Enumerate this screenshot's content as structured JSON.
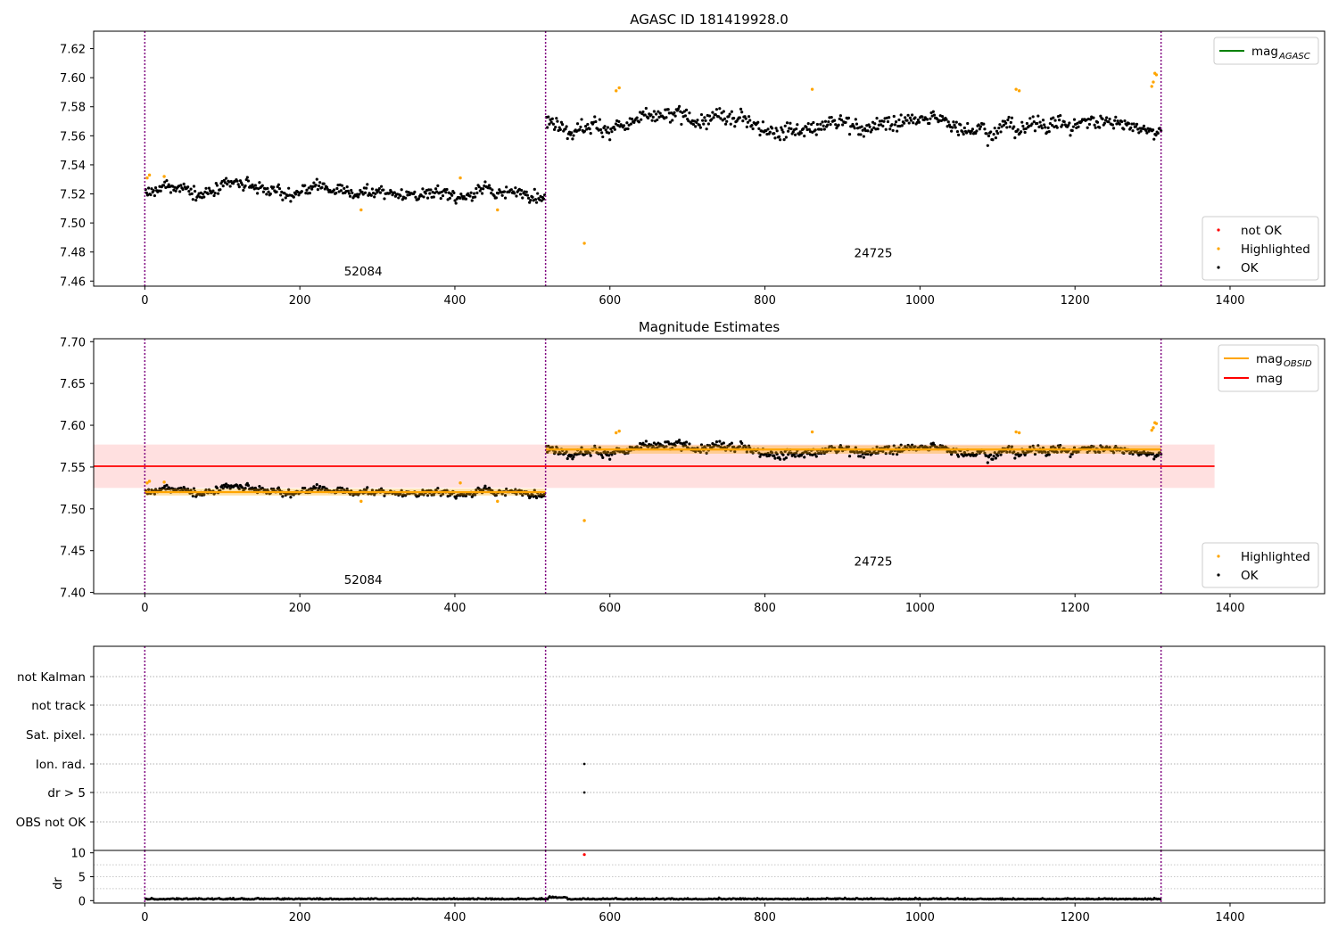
{
  "chart_data": [
    {
      "type": "scatter",
      "title": "AGASC ID 181419928.0",
      "xlabel": "",
      "ylabel": "",
      "xlim": [
        -66,
        1522
      ],
      "ylim": [
        7.4565,
        7.632
      ],
      "xticks": [
        0,
        200,
        400,
        600,
        800,
        1000,
        1200,
        1400
      ],
      "yticks": [
        7.46,
        7.48,
        7.5,
        7.52,
        7.54,
        7.56,
        7.58,
        7.6,
        7.62
      ],
      "grid": false,
      "obsid_boundaries": [
        0,
        517,
        1311
      ],
      "obsid_labels": [
        {
          "text": "52084",
          "x": 257,
          "y": 7.464
        },
        {
          "text": "24725",
          "x": 915,
          "y": 7.4765
        }
      ],
      "ok_segments": [
        {
          "x_start": 0,
          "x_end": 517,
          "mean": 7.521,
          "noise": 0.0035
        },
        {
          "x_start": 517,
          "x_end": 1311,
          "mean": 7.569,
          "noise": 0.0045
        }
      ],
      "highlighted_points": [
        {
          "x": 3,
          "y": 7.531
        },
        {
          "x": 6,
          "y": 7.533
        },
        {
          "x": 25,
          "y": 7.532
        },
        {
          "x": 279,
          "y": 7.509
        },
        {
          "x": 407,
          "y": 7.531
        },
        {
          "x": 455,
          "y": 7.509
        },
        {
          "x": 567,
          "y": 7.486
        },
        {
          "x": 608,
          "y": 7.591
        },
        {
          "x": 612,
          "y": 7.593
        },
        {
          "x": 861,
          "y": 7.592
        },
        {
          "x": 1124,
          "y": 7.592
        },
        {
          "x": 1128,
          "y": 7.591
        },
        {
          "x": 1299,
          "y": 7.594
        },
        {
          "x": 1301,
          "y": 7.597
        },
        {
          "x": 1303,
          "y": 7.603
        },
        {
          "x": 1305,
          "y": 7.602
        }
      ],
      "legend_lines": {
        "location": "upper right",
        "entries": [
          {
            "label": "mag",
            "subscript": "AGASC",
            "color": "#008000"
          }
        ]
      },
      "legend_points": {
        "location": "lower right",
        "entries": [
          {
            "label": "not OK",
            "color": "#ff0000"
          },
          {
            "label": "Highlighted",
            "color": "#ffa500"
          },
          {
            "label": "OK",
            "color": "#000000"
          }
        ]
      }
    },
    {
      "type": "scatter",
      "title": "Magnitude Estimates",
      "xlabel": "",
      "ylabel": "",
      "xlim": [
        -66,
        1522
      ],
      "ylim": [
        7.3985,
        7.7035
      ],
      "xticks": [
        0,
        200,
        400,
        600,
        800,
        1000,
        1200,
        1400
      ],
      "yticks": [
        7.4,
        7.45,
        7.5,
        7.55,
        7.6,
        7.65,
        7.7
      ],
      "grid": false,
      "obsid_boundaries": [
        0,
        517,
        1311
      ],
      "obsid_labels": [
        {
          "text": "52084",
          "x": 257,
          "y": 7.41
        },
        {
          "text": "24725",
          "x": 915,
          "y": 7.432
        }
      ],
      "mag_line": {
        "value": 7.551,
        "band": [
          7.525,
          7.577
        ],
        "x_range": [
          -66,
          1380
        ],
        "color": "#ff0000"
      },
      "mag_obsid": [
        {
          "x_start": 0,
          "x_end": 517,
          "value": 7.52,
          "band": [
            7.516,
            7.524
          ]
        },
        {
          "x_start": 517,
          "x_end": 1311,
          "value": 7.571,
          "band": [
            7.566,
            7.576
          ]
        }
      ],
      "legend_lines": {
        "location": "upper right",
        "entries": [
          {
            "label": "mag",
            "subscript": "OBSID",
            "color": "#ffa500"
          },
          {
            "label": "mag",
            "subscript": "",
            "color": "#ff0000"
          }
        ]
      },
      "legend_points": {
        "location": "lower right",
        "entries": [
          {
            "label": "Highlighted",
            "color": "#ffa500"
          },
          {
            "label": "OK",
            "color": "#000000"
          }
        ]
      }
    },
    {
      "type": "scatter",
      "title": "",
      "xlabel": "",
      "ylabel": "",
      "xlim": [
        -66,
        1522
      ],
      "xticks": [
        0,
        200,
        400,
        600,
        800,
        1000,
        1200,
        1400
      ],
      "flag_categories": [
        "not Kalman",
        "not track",
        "Sat. pixel.",
        "Ion. rad.",
        "dr > 5",
        "OBS not OK"
      ],
      "flag_points": [
        {
          "category": "Ion. rad.",
          "x": 567
        },
        {
          "category": "dr > 5",
          "x": 567
        }
      ],
      "obsid_boundaries": [
        0,
        517,
        1311
      ]
    },
    {
      "type": "scatter",
      "title": "",
      "xlabel": "",
      "ylabel": "dr",
      "xlim": [
        -66,
        1522
      ],
      "ylim": [
        -0.5,
        10.5
      ],
      "yticks": [
        0,
        5,
        10
      ],
      "xticks": [
        0,
        200,
        400,
        600,
        800,
        1000,
        1200,
        1400
      ],
      "grid": true,
      "dr_baseline": 0.25,
      "dr_outlier": {
        "x": 567,
        "y": 10,
        "color": "#ff0000"
      },
      "obsid_boundaries": [
        0,
        517,
        1311
      ]
    }
  ]
}
